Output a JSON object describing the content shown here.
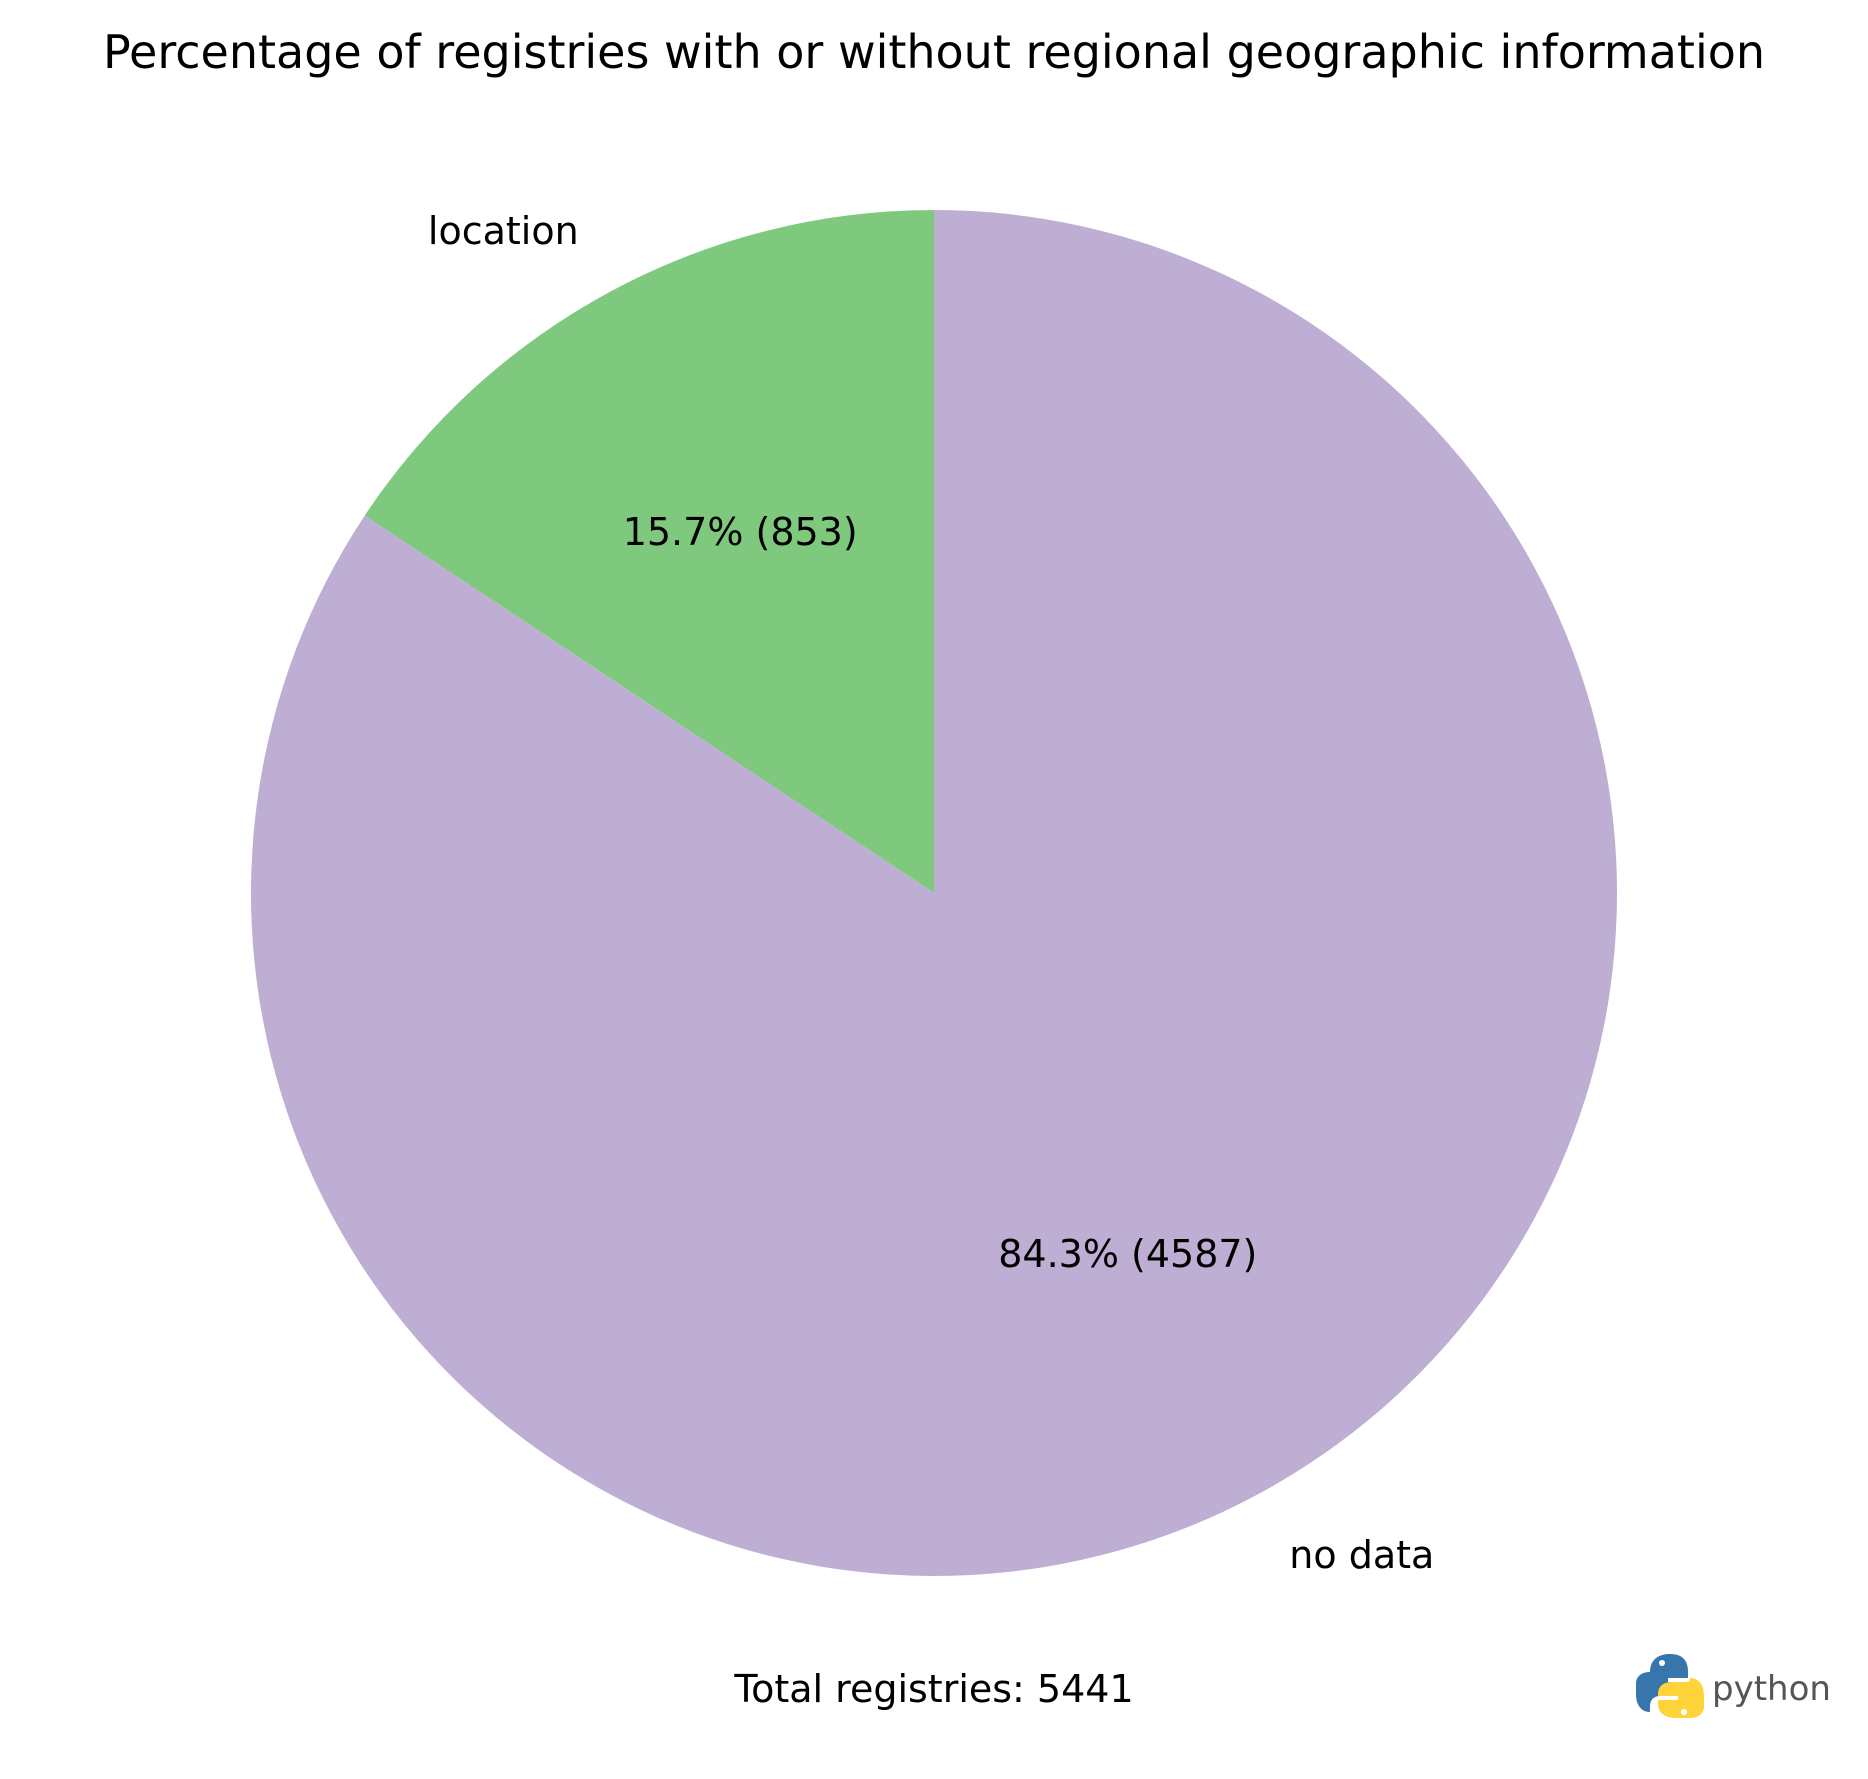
{
  "chart_data": {
    "type": "pie",
    "title": "Percentage of registries with or without regional geographic information",
    "slices": [
      {
        "label": "location",
        "value": 853,
        "percent": 15.7,
        "autopct": "15.7% (853)",
        "color": "#7fc97f"
      },
      {
        "label": "no data",
        "value": 4587,
        "percent": 84.3,
        "autopct": "84.3% (4587)",
        "color": "#beaed4"
      }
    ],
    "start_angle_deg": 90,
    "direction": "counterclockwise",
    "legend": "none",
    "grid": false
  },
  "footer": {
    "total_text": "Total registries: 5441"
  },
  "logo": {
    "text": "python",
    "icon": "python-logo-icon",
    "blue": "#3776ab",
    "yellow": "#ffd43b"
  }
}
